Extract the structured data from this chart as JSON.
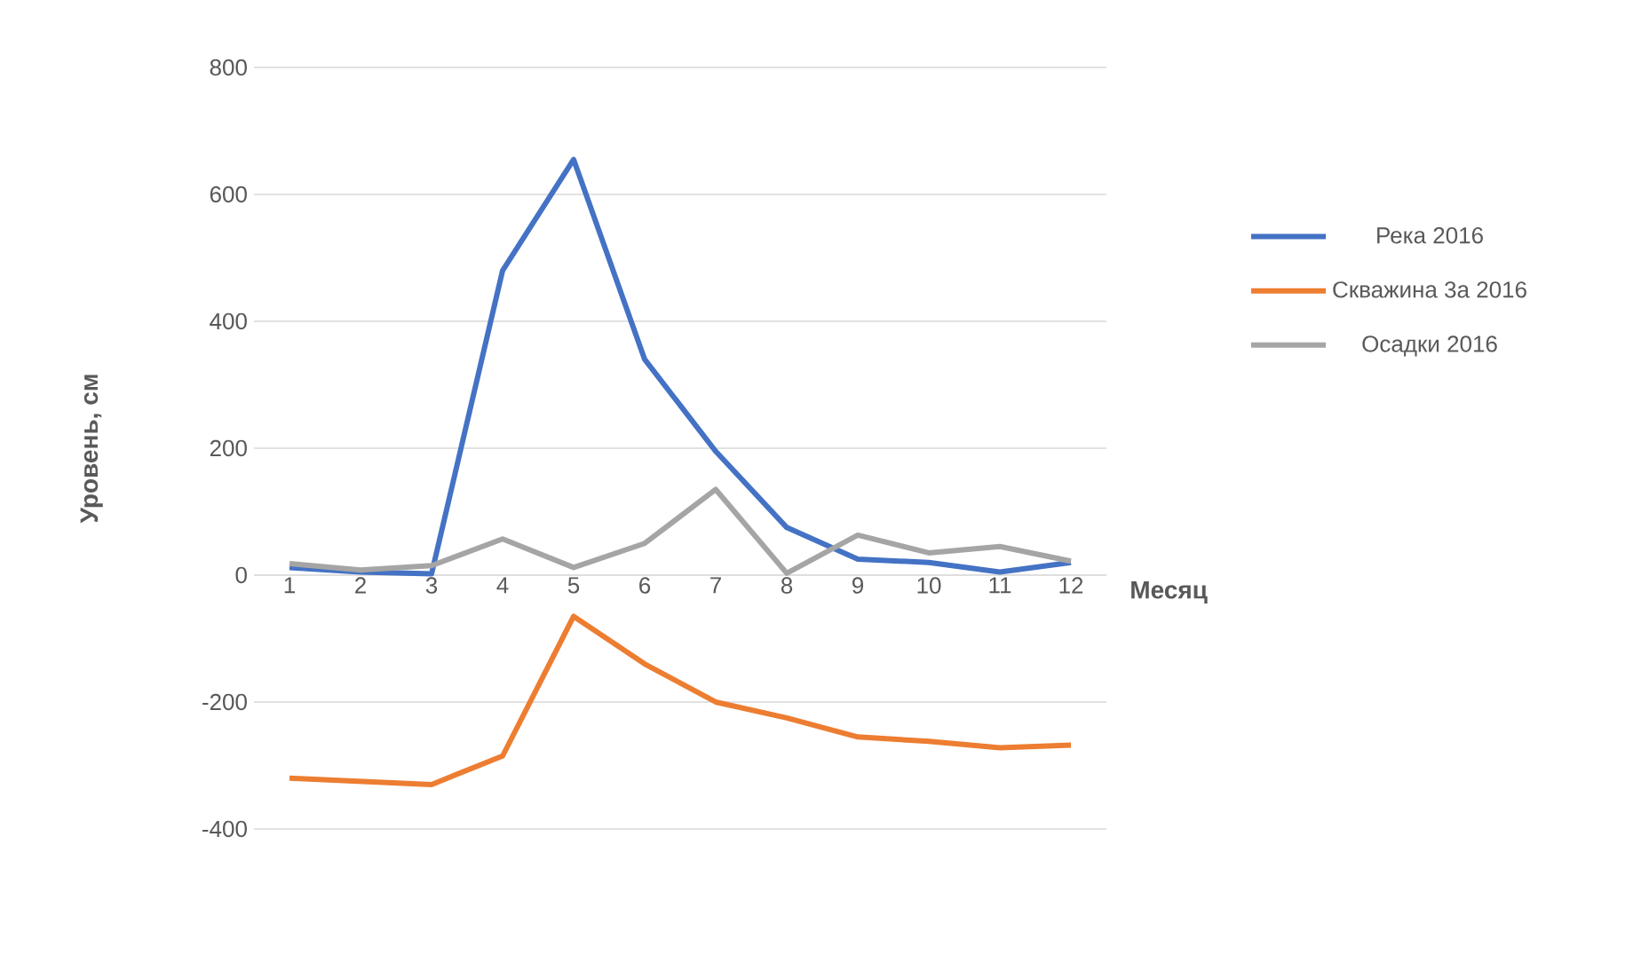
{
  "chart_data": {
    "type": "line",
    "xlabel": "Месяц",
    "ylabel": "Уровень, см",
    "categories": [
      "1",
      "2",
      "3",
      "4",
      "5",
      "6",
      "7",
      "8",
      "9",
      "10",
      "11",
      "12"
    ],
    "series": [
      {
        "name": "Река 2016",
        "color": "#4472c4",
        "values": [
          12,
          5,
          2,
          480,
          655,
          340,
          195,
          75,
          25,
          20,
          5,
          20
        ]
      },
      {
        "name": "Скважина 3а 2016",
        "color": "#ed7d31",
        "values": [
          -320,
          -325,
          -330,
          -285,
          -65,
          -140,
          -200,
          -225,
          -255,
          -262,
          -272,
          -268
        ]
      },
      {
        "name": "Осадки 2016",
        "color": "#a5a5a5",
        "values": [
          18,
          8,
          15,
          57,
          12,
          50,
          135,
          3,
          63,
          35,
          45,
          22
        ]
      }
    ],
    "ylim": [
      -400,
      800
    ],
    "yticks": [
      -400,
      -200,
      0,
      200,
      400,
      600,
      800
    ],
    "grid": "y",
    "legend": "right"
  }
}
